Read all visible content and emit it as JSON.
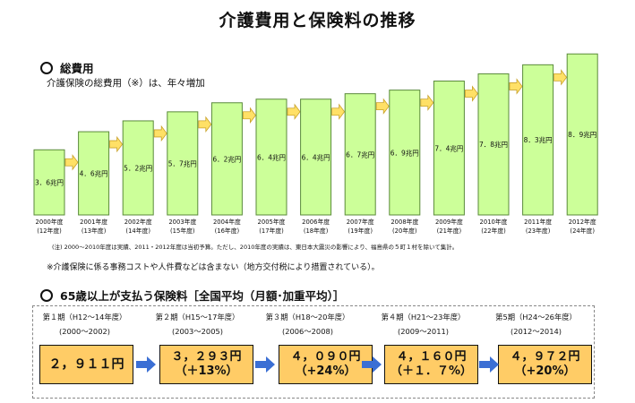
{
  "title": "介護費用と保険料の推移",
  "section1": {
    "heading": "総費用",
    "note": "介護保険の総費用（※）は、年々増加"
  },
  "chart_data": {
    "type": "bar",
    "title": "",
    "xlabel": "",
    "ylabel": "",
    "ylim": [
      0,
      9.4
    ],
    "categories": [
      {
        "year": "2000年度",
        "era": "(12年度)"
      },
      {
        "year": "2001年度",
        "era": "(13年度)"
      },
      {
        "year": "2002年度",
        "era": "(14年度)"
      },
      {
        "year": "2003年度",
        "era": "(15年度)"
      },
      {
        "year": "2004年度",
        "era": "(16年度)"
      },
      {
        "year": "2005年度",
        "era": "(17年度)"
      },
      {
        "year": "2006年度",
        "era": "(18年度)"
      },
      {
        "year": "2007年度",
        "era": "(19年度)"
      },
      {
        "year": "2008年度",
        "era": "(20年度)"
      },
      {
        "year": "2009年度",
        "era": "(21年度)"
      },
      {
        "year": "2010年度",
        "era": "(22年度)"
      },
      {
        "year": "2011年度",
        "era": "(23年度)"
      },
      {
        "year": "2012年度",
        "era": "(24年度)"
      }
    ],
    "values": [
      3.6,
      4.6,
      5.2,
      5.7,
      6.2,
      6.4,
      6.4,
      6.7,
      6.9,
      7.4,
      7.8,
      8.3,
      8.9
    ],
    "value_labels": [
      "3．6兆円",
      "4．6兆円",
      "5．2兆円",
      "5．7兆円",
      "6．2兆円",
      "6．4兆円",
      "6．4兆円",
      "6．7兆円",
      "6．9兆円",
      "7．4兆円",
      "7．8兆円",
      "8．3兆円",
      "8．9兆円"
    ],
    "colors": {
      "bar": "#ccff99",
      "bar_border": "#5a8a3a",
      "arrow": "#ffe066"
    }
  },
  "footnote1": "(注) 2000～2010年度は実績、2011・2012年度は当初予算。ただし、2010年度の実績は、東日本大震災の影響により、福島県の５町１村を除いて集計。",
  "footnote2": "※介護保険に係る事務コストや人件費などは含まない（地方交付税により措置されている）。",
  "section2": {
    "heading": "65歳以上が支払う保険料［全国平均（月額･加重平均）］",
    "periods": [
      {
        "label": "第１期（H12～14年度）",
        "years": "(2000～2002)",
        "amount": "２，９１１円",
        "change": ""
      },
      {
        "label": "第２期（H15～17年度）",
        "years": "(2003～2005)",
        "amount": "３，２９３円",
        "change": "（＋13%）"
      },
      {
        "label": "第３期（H18～20年度）",
        "years": "(2006～2008)",
        "amount": "４，０９０円",
        "change": "（+24%）"
      },
      {
        "label": "第４期（H21～23年度）",
        "years": "(2009～2011)",
        "amount": "４，１６０円",
        "change": "（＋１．７%）"
      },
      {
        "label": "第5期（H24～26年度）",
        "years": "(2012～2014)",
        "amount": "４，９７２円",
        "change": "（+20%）"
      }
    ],
    "colors": {
      "box": "#ffcc66",
      "arrow": "#3b6fd4"
    }
  }
}
